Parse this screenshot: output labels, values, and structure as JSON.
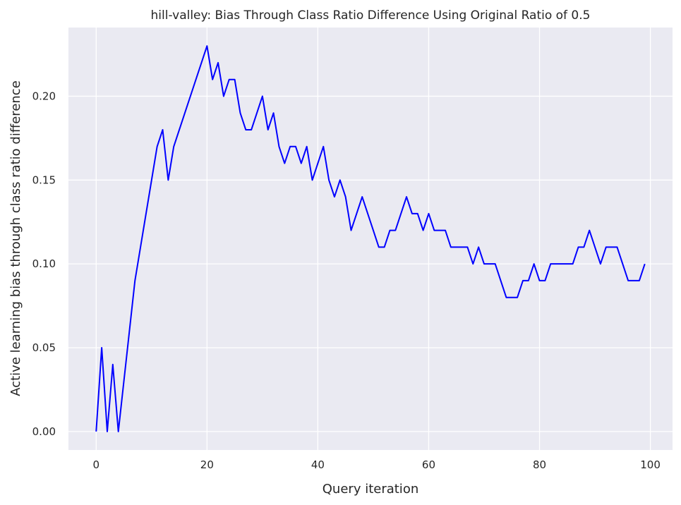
{
  "chart_data": {
    "type": "line",
    "title": "hill-valley: Bias Through Class Ratio Difference Using Original Ratio of 0.5",
    "xlabel": "Query iteration",
    "ylabel": "Active learning bias through class ratio difference",
    "xlim": [
      -5,
      104
    ],
    "ylim": [
      -0.011,
      0.241
    ],
    "xticks": [
      0,
      20,
      40,
      60,
      80,
      100
    ],
    "xtick_labels": [
      "0",
      "20",
      "40",
      "60",
      "80",
      "100"
    ],
    "yticks": [
      0.0,
      0.05,
      0.1,
      0.15,
      0.2
    ],
    "ytick_labels": [
      "0.00",
      "0.05",
      "0.10",
      "0.15",
      "0.20"
    ],
    "grid": true,
    "background": "#EAEAF2",
    "grid_color": "#FFFFFF",
    "series": [
      {
        "color": "#0000FF",
        "x": [
          0,
          1,
          2,
          3,
          4,
          5,
          6,
          7,
          8,
          9,
          10,
          11,
          12,
          13,
          14,
          15,
          16,
          17,
          18,
          19,
          20,
          21,
          22,
          23,
          24,
          25,
          26,
          27,
          28,
          29,
          30,
          31,
          32,
          33,
          34,
          35,
          36,
          37,
          38,
          39,
          40,
          41,
          42,
          43,
          44,
          45,
          46,
          47,
          48,
          49,
          50,
          51,
          52,
          53,
          54,
          55,
          56,
          57,
          58,
          59,
          60,
          61,
          62,
          63,
          64,
          65,
          66,
          67,
          68,
          69,
          70,
          71,
          72,
          73,
          74,
          75,
          76,
          77,
          78,
          79,
          80,
          81,
          82,
          83,
          84,
          85,
          86,
          87,
          88,
          89,
          90,
          91,
          92,
          93,
          94,
          95,
          96,
          97,
          98,
          99
        ],
        "values": [
          0.0,
          0.05,
          0.0,
          0.04,
          0.0,
          0.03,
          0.06,
          0.09,
          0.11,
          0.13,
          0.15,
          0.17,
          0.18,
          0.15,
          0.17,
          0.18,
          0.19,
          0.2,
          0.21,
          0.22,
          0.23,
          0.21,
          0.22,
          0.2,
          0.21,
          0.21,
          0.19,
          0.18,
          0.18,
          0.19,
          0.2,
          0.18,
          0.19,
          0.17,
          0.16,
          0.17,
          0.17,
          0.16,
          0.17,
          0.15,
          0.16,
          0.17,
          0.15,
          0.14,
          0.15,
          0.14,
          0.12,
          0.13,
          0.14,
          0.13,
          0.12,
          0.11,
          0.11,
          0.12,
          0.12,
          0.13,
          0.14,
          0.13,
          0.13,
          0.12,
          0.13,
          0.12,
          0.12,
          0.12,
          0.11,
          0.11,
          0.11,
          0.11,
          0.1,
          0.11,
          0.1,
          0.1,
          0.1,
          0.09,
          0.08,
          0.08,
          0.08,
          0.09,
          0.09,
          0.1,
          0.09,
          0.09,
          0.1,
          0.1,
          0.1,
          0.1,
          0.1,
          0.11,
          0.11,
          0.12,
          0.11,
          0.1,
          0.11,
          0.11,
          0.11,
          0.1,
          0.09,
          0.09,
          0.09,
          0.1
        ]
      }
    ]
  }
}
